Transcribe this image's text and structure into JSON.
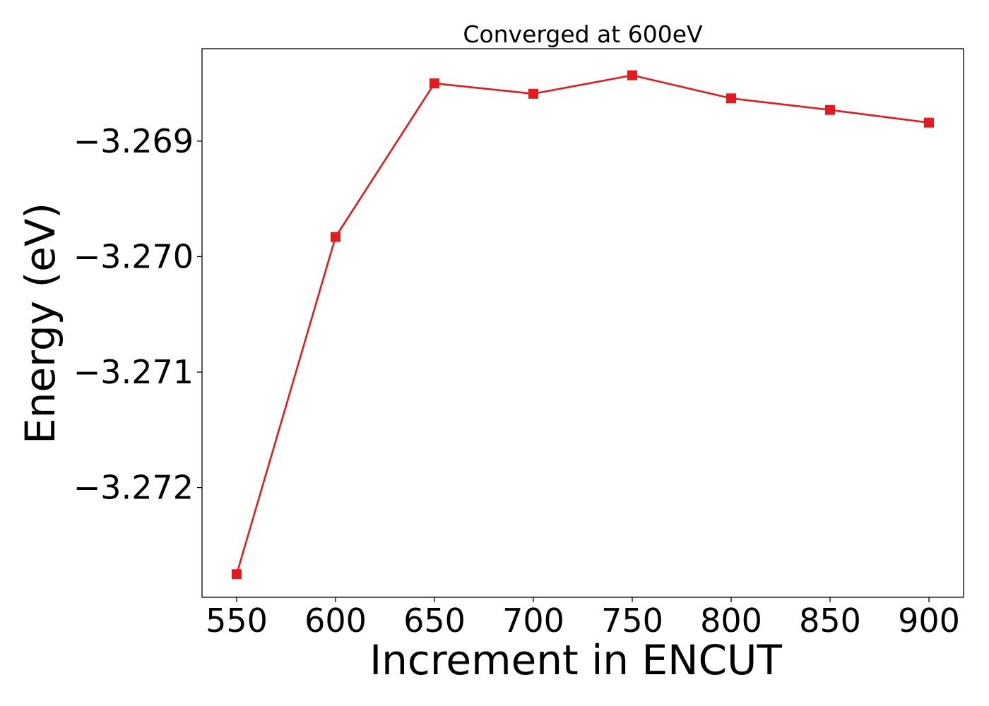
{
  "chart_data": {
    "type": "line",
    "title": "Converged at 600eV",
    "xlabel": "Increment in ENCUT",
    "ylabel": "Energy (eV)",
    "x": [
      550,
      600,
      650,
      700,
      750,
      800,
      850,
      900
    ],
    "series": [
      {
        "values": [
          -3.27275,
          -3.26983,
          -3.2685,
          -3.26859,
          -3.26843,
          -3.26863,
          -3.26873,
          -3.26884
        ],
        "color": "#e41a1c",
        "marker": "square"
      }
    ],
    "xticks": [
      550,
      600,
      650,
      700,
      750,
      800,
      850,
      900
    ],
    "xtick_labels": [
      "550",
      "600",
      "650",
      "700",
      "750",
      "800",
      "850",
      "900"
    ],
    "yticks": [
      -3.272,
      -3.271,
      -3.27,
      -3.269
    ],
    "ytick_labels": [
      "−3.272",
      "−3.271",
      "−3.270",
      "−3.269"
    ],
    "xlim": [
      532.5,
      917.5
    ],
    "ylim": [
      -3.27295,
      -3.2682
    ],
    "grid": false,
    "legend": false
  }
}
